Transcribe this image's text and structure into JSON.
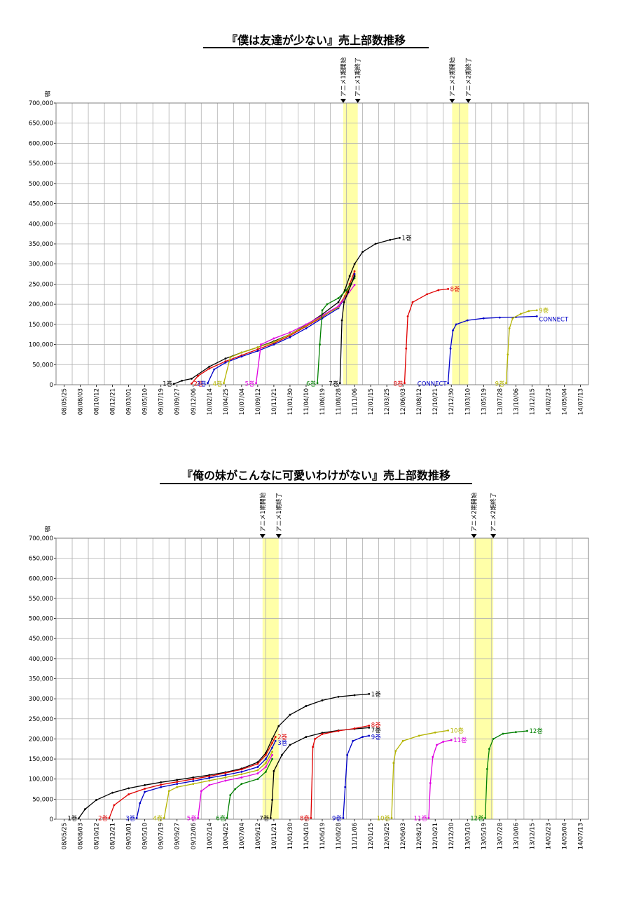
{
  "chart_data": [
    {
      "type": "line",
      "title": "『僕は友達が少ない』売上部数推移",
      "ylabel": "部",
      "ylim": [
        0,
        700000
      ],
      "yticks": [
        0,
        50000,
        100000,
        150000,
        200000,
        250000,
        300000,
        350000,
        400000,
        450000,
        500000,
        550000,
        600000,
        650000,
        700000
      ],
      "ytick_labels": [
        "0",
        "50,000",
        "100,000",
        "150,000",
        "200,000",
        "250,000",
        "300,000",
        "350,000",
        "400,000",
        "450,000",
        "500,000",
        "550,000",
        "600,000",
        "650,000",
        "700,000"
      ],
      "xtick_labels": [
        "08/05/25",
        "08/08/03",
        "08/10/12",
        "08/12/21",
        "09/03/01",
        "09/05/10",
        "09/07/19",
        "09/09/27",
        "09/12/06",
        "10/02/14",
        "10/04/25",
        "10/07/04",
        "10/09/12",
        "10/11/21",
        "11/01/30",
        "11/04/10",
        "11/06/19",
        "11/08/28",
        "11/11/06",
        "12/01/15",
        "12/03/25",
        "12/06/03",
        "12/08/12",
        "12/10/21",
        "12/12/30",
        "13/03/10",
        "13/05/19",
        "13/07/28",
        "13/10/06",
        "13/12/15",
        "14/02/23",
        "14/05/04",
        "14/07/13"
      ],
      "grid": true,
      "highlights": [
        {
          "start_label": "アニメ1期開始",
          "end_label": "アニメ1期終了",
          "start_x": 17.3,
          "end_x": 18.2
        },
        {
          "start_label": "アニメ2期開始",
          "end_label": "アニメ2期終了",
          "start_x": 24.05,
          "end_x": 25.05
        }
      ],
      "series": [
        {
          "name": "1巻",
          "color": "#000000",
          "x": [
            6.8,
            7.3,
            7.9,
            9,
            10,
            11,
            12,
            13,
            14,
            15,
            16,
            17,
            17.4,
            17.7,
            18,
            18.5,
            19.3,
            20.2,
            20.8
          ],
          "y": [
            2000,
            10000,
            15000,
            45000,
            65000,
            80000,
            93000,
            108000,
            125000,
            148000,
            175000,
            205000,
            235000,
            270000,
            300000,
            330000,
            350000,
            360000,
            365000
          ]
        },
        {
          "name": "2巻",
          "color": "#e00000",
          "x": [
            7.9,
            8.3,
            9,
            10,
            11,
            12,
            13,
            14,
            15,
            16,
            17,
            17.4,
            17.7,
            18
          ],
          "y": [
            3000,
            22000,
            40000,
            58000,
            73000,
            88000,
            103000,
            122000,
            145000,
            168000,
            195000,
            220000,
            250000,
            282000
          ]
        },
        {
          "name": "3巻",
          "color": "#0000c8",
          "x": [
            8.9,
            9.3,
            10,
            11,
            12,
            13,
            14,
            15,
            16,
            17,
            17.5,
            17.8,
            18
          ],
          "y": [
            4000,
            38000,
            55000,
            70000,
            84000,
            100000,
            118000,
            140000,
            165000,
            190000,
            222000,
            250000,
            275000
          ]
        },
        {
          "name": "4巻",
          "color": "#b4b400",
          "x": [
            9.9,
            10.3,
            11,
            12,
            13,
            14,
            15,
            16,
            17,
            17.5,
            17.8,
            18
          ],
          "y": [
            4000,
            68000,
            80000,
            93000,
            106000,
            125000,
            147000,
            170000,
            192000,
            225000,
            250000,
            270000
          ]
        },
        {
          "name": "5巻",
          "color": "#e000e0",
          "x": [
            11.9,
            12.2,
            13,
            14,
            15,
            16,
            17,
            17.5,
            18
          ],
          "y": [
            4000,
            100000,
            115000,
            130000,
            150000,
            172000,
            195000,
            220000,
            248000
          ]
        },
        {
          "name": "6巻",
          "color": "#008000",
          "x": [
            15.7,
            15.85,
            16,
            16.3,
            17,
            17.5,
            18
          ],
          "y": [
            4000,
            100000,
            185000,
            200000,
            215000,
            235000,
            265000
          ]
        },
        {
          "name": "7巻",
          "color": "#000000",
          "x": [
            17.1,
            17.22,
            17.35,
            17.6,
            18
          ],
          "y": [
            4000,
            160000,
            205000,
            230000,
            270000
          ]
        },
        {
          "name": "8巻",
          "color": "#e00000",
          "x": [
            21.1,
            21.2,
            21.3,
            21.6,
            22.5,
            23.2,
            23.8
          ],
          "y": [
            4000,
            90000,
            170000,
            205000,
            225000,
            235000,
            238000
          ]
        },
        {
          "name": "CONNECT",
          "color": "#0000c8",
          "x": [
            23.8,
            23.95,
            24.1,
            24.3,
            25,
            26,
            27,
            28,
            29.3
          ],
          "y": [
            4000,
            90000,
            135000,
            150000,
            160000,
            165000,
            167000,
            168000,
            170000
          ]
        },
        {
          "name": "9巻",
          "color": "#b4b400",
          "x": [
            27.4,
            27.5,
            27.6,
            27.8,
            28.3,
            28.8,
            29.3
          ],
          "y": [
            4000,
            75000,
            140000,
            165000,
            176000,
            183000,
            185000
          ]
        }
      ],
      "series_labels": [
        {
          "text": "1巻",
          "color": "#000000",
          "x": 6.8,
          "y": 3000,
          "anchor": "end"
        },
        {
          "text": "2巻",
          "color": "#e00000",
          "x": 7.9,
          "y": 3000,
          "anchor": "start"
        },
        {
          "text": "3巻",
          "color": "#0000c8",
          "x": 8.9,
          "y": 3000,
          "anchor": "end"
        },
        {
          "text": "4巻",
          "color": "#b4b400",
          "x": 9.9,
          "y": 3000,
          "anchor": "end"
        },
        {
          "text": "5巻",
          "color": "#e000e0",
          "x": 11.9,
          "y": 3000,
          "anchor": "end"
        },
        {
          "text": "6巻",
          "color": "#008000",
          "x": 15.7,
          "y": 3000,
          "anchor": "end"
        },
        {
          "text": "7巻",
          "color": "#000000",
          "x": 17.1,
          "y": 3000,
          "anchor": "end"
        },
        {
          "text": "1巻",
          "color": "#000000",
          "x": 20.8,
          "y": 365000,
          "anchor": "start"
        },
        {
          "text": "8巻",
          "color": "#e00000",
          "x": 21.1,
          "y": 3000,
          "anchor": "end"
        },
        {
          "text": "8巻",
          "color": "#e00000",
          "x": 23.8,
          "y": 238000,
          "anchor": "start"
        },
        {
          "text": "CONNECT",
          "color": "#0000c8",
          "x": 23.8,
          "y": 3000,
          "anchor": "end"
        },
        {
          "text": "CONNECT",
          "color": "#0000c8",
          "x": 29.3,
          "y": 163000,
          "anchor": "start"
        },
        {
          "text": "9巻",
          "color": "#b4b400",
          "x": 27.4,
          "y": 3000,
          "anchor": "end"
        },
        {
          "text": "9巻",
          "color": "#b4b400",
          "x": 29.3,
          "y": 185000,
          "anchor": "start"
        }
      ]
    },
    {
      "type": "line",
      "title": "『俺の妹がこんなに可愛いわけがない』売上部数推移",
      "ylabel": "部",
      "ylim": [
        0,
        700000
      ],
      "yticks": [
        0,
        50000,
        100000,
        150000,
        200000,
        250000,
        300000,
        350000,
        400000,
        450000,
        500000,
        550000,
        600000,
        650000,
        700000
      ],
      "ytick_labels": [
        "0",
        "50,000",
        "100,000",
        "150,000",
        "200,000",
        "250,000",
        "300,000",
        "350,000",
        "400,000",
        "450,000",
        "500,000",
        "550,000",
        "600,000",
        "650,000",
        "700,000"
      ],
      "xtick_labels": [
        "08/05/25",
        "08/08/03",
        "08/10/12",
        "08/12/21",
        "09/03/01",
        "09/05/10",
        "09/07/19",
        "09/09/27",
        "09/12/06",
        "10/02/14",
        "10/04/25",
        "10/07/04",
        "10/09/12",
        "10/11/21",
        "11/01/30",
        "11/04/10",
        "11/06/19",
        "11/08/28",
        "11/11/06",
        "12/01/15",
        "12/03/25",
        "12/06/03",
        "12/08/12",
        "12/10/21",
        "12/12/30",
        "13/03/10",
        "13/05/19",
        "13/07/28",
        "13/10/06",
        "13/12/15",
        "14/02/23",
        "14/05/04",
        "14/07/13"
      ],
      "grid": true,
      "highlights": [
        {
          "start_label": "アニメ1期開始",
          "end_label": "アニメ1期終了",
          "start_x": 12.3,
          "end_x": 13.3
        },
        {
          "start_label": "アニメ2期開始",
          "end_label": "アニメ2期終了",
          "start_x": 25.4,
          "end_x": 26.6
        }
      ],
      "series": [
        {
          "name": "1巻",
          "color": "#000000",
          "x": [
            0.9,
            1.3,
            2,
            3,
            4,
            5,
            6,
            7,
            8,
            9,
            10,
            11,
            12,
            12.5,
            12.9,
            13.3,
            14,
            15,
            16,
            17,
            18,
            18.9
          ],
          "y": [
            2000,
            25000,
            48000,
            66000,
            77000,
            85000,
            92000,
            98000,
            104000,
            110000,
            117000,
            126000,
            142000,
            165000,
            200000,
            232000,
            260000,
            282000,
            296000,
            305000,
            309000,
            312000
          ]
        },
        {
          "name": "2巻",
          "color": "#e00000",
          "x": [
            2.8,
            3.1,
            4,
            5,
            6,
            7,
            8,
            9,
            10,
            11,
            12,
            12.5,
            12.9,
            13.1
          ],
          "y": [
            3000,
            35000,
            62000,
            76000,
            86000,
            93000,
            100000,
            107000,
            115000,
            124000,
            138000,
            160000,
            190000,
            205000
          ]
        },
        {
          "name": "3巻",
          "color": "#0000c8",
          "x": [
            4.5,
            4.7,
            5,
            6,
            7,
            8,
            9,
            10,
            11,
            12,
            12.5,
            12.9,
            13.1
          ],
          "y": [
            3000,
            40000,
            68000,
            80000,
            88000,
            95000,
            103000,
            110000,
            118000,
            130000,
            150000,
            178000,
            195000
          ]
        },
        {
          "name": "4巻",
          "color": "#b4b400",
          "x": [
            6.2,
            6.5,
            7,
            8,
            9,
            10,
            11,
            12,
            12.5,
            12.9
          ],
          "y": [
            3000,
            70000,
            80000,
            88000,
            96000,
            104000,
            112000,
            122000,
            140000,
            168000
          ]
        },
        {
          "name": "5巻",
          "color": "#e000e0",
          "x": [
            8.3,
            8.5,
            9,
            10,
            11,
            12,
            12.5,
            12.9
          ],
          "y": [
            3000,
            70000,
            85000,
            96000,
            104000,
            114000,
            130000,
            160000
          ]
        },
        {
          "name": "6巻",
          "color": "#008000",
          "x": [
            10.1,
            10.3,
            10.6,
            11,
            12,
            12.5,
            12.9
          ],
          "y": [
            3000,
            60000,
            75000,
            88000,
            100000,
            118000,
            150000
          ]
        },
        {
          "name": "7巻",
          "color": "#000000",
          "x": [
            12.8,
            12.9,
            13,
            13.5,
            14,
            15,
            16,
            17,
            18,
            18.9
          ],
          "y": [
            3000,
            48000,
            120000,
            160000,
            185000,
            205000,
            215000,
            221000,
            225000,
            228000
          ]
        },
        {
          "name": "8巻",
          "color": "#e00000",
          "x": [
            15.3,
            15.42,
            15.55,
            16,
            17,
            18,
            18.9
          ],
          "y": [
            3000,
            180000,
            200000,
            212000,
            220000,
            226000,
            233000
          ]
        },
        {
          "name": "9巻",
          "color": "#0000c8",
          "x": [
            17.3,
            17.42,
            17.55,
            17.9,
            18.5,
            18.9
          ],
          "y": [
            3000,
            80000,
            160000,
            195000,
            205000,
            208000
          ]
        },
        {
          "name": "10巻",
          "color": "#b4b400",
          "x": [
            20.3,
            20.42,
            20.55,
            21,
            22,
            23,
            23.8
          ],
          "y": [
            3000,
            140000,
            170000,
            195000,
            208000,
            216000,
            221000
          ]
        },
        {
          "name": "11巻",
          "color": "#e000e0",
          "x": [
            22.6,
            22.7,
            22.85,
            23.1,
            23.5,
            24
          ],
          "y": [
            3000,
            90000,
            155000,
            185000,
            193000,
            197000
          ]
        },
        {
          "name": "12巻",
          "color": "#008000",
          "x": [
            26.1,
            26.22,
            26.35,
            26.6,
            27.2,
            28,
            28.7
          ],
          "y": [
            3000,
            125000,
            175000,
            200000,
            213000,
            217000,
            220000
          ]
        }
      ],
      "series_labels": [
        {
          "text": "1巻",
          "color": "#000000",
          "x": 0.9,
          "y": 3000,
          "anchor": "end"
        },
        {
          "text": "2巻",
          "color": "#e00000",
          "x": 2.8,
          "y": 3000,
          "anchor": "end"
        },
        {
          "text": "3巻",
          "color": "#0000c8",
          "x": 4.5,
          "y": 3000,
          "anchor": "end"
        },
        {
          "text": "4巻",
          "color": "#b4b400",
          "x": 6.2,
          "y": 3000,
          "anchor": "end"
        },
        {
          "text": "5巻",
          "color": "#e000e0",
          "x": 8.3,
          "y": 3000,
          "anchor": "end"
        },
        {
          "text": "6巻",
          "color": "#008000",
          "x": 10.1,
          "y": 3000,
          "anchor": "end"
        },
        {
          "text": "7巻",
          "color": "#000000",
          "x": 12.8,
          "y": 3000,
          "anchor": "end"
        },
        {
          "text": "1巻",
          "color": "#000000",
          "x": 18.9,
          "y": 312000,
          "anchor": "start"
        },
        {
          "text": "2巻",
          "color": "#e00000",
          "x": 13.1,
          "y": 205000,
          "anchor": "start"
        },
        {
          "text": "3巻",
          "color": "#0000c8",
          "x": 13.1,
          "y": 190000,
          "anchor": "start"
        },
        {
          "text": "8巻",
          "color": "#e00000",
          "x": 15.3,
          "y": 3000,
          "anchor": "end"
        },
        {
          "text": "8巻",
          "color": "#e00000",
          "x": 18.9,
          "y": 235000,
          "anchor": "start"
        },
        {
          "text": "7巻",
          "color": "#000000",
          "x": 18.9,
          "y": 222000,
          "anchor": "start"
        },
        {
          "text": "9巻",
          "color": "#0000c8",
          "x": 17.3,
          "y": 3000,
          "anchor": "end"
        },
        {
          "text": "9巻",
          "color": "#0000c8",
          "x": 18.9,
          "y": 205000,
          "anchor": "start"
        },
        {
          "text": "10巻",
          "color": "#b4b400",
          "x": 20.3,
          "y": 3000,
          "anchor": "end"
        },
        {
          "text": "10巻",
          "color": "#b4b400",
          "x": 23.8,
          "y": 221000,
          "anchor": "start"
        },
        {
          "text": "11巻",
          "color": "#e000e0",
          "x": 22.6,
          "y": 3000,
          "anchor": "end"
        },
        {
          "text": "11巻",
          "color": "#e000e0",
          "x": 24,
          "y": 197000,
          "anchor": "start"
        },
        {
          "text": "12巻",
          "color": "#008000",
          "x": 26.1,
          "y": 3000,
          "anchor": "end"
        },
        {
          "text": "12巻",
          "color": "#008000",
          "x": 28.7,
          "y": 220000,
          "anchor": "start"
        }
      ]
    }
  ]
}
